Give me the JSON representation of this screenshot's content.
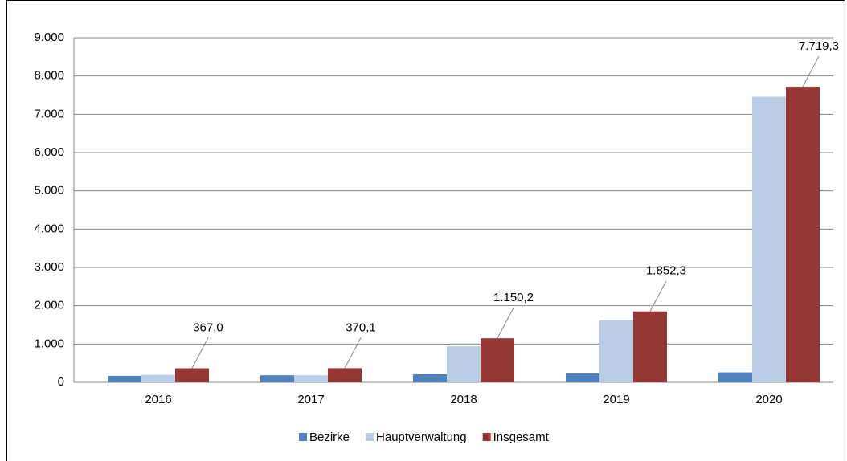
{
  "chart_data": {
    "type": "bar",
    "categories": [
      "2016",
      "2017",
      "2018",
      "2019",
      "2020"
    ],
    "series": [
      {
        "name": "Bezirke",
        "color": "#4f81bd",
        "values": [
          170,
          185,
          210,
          230,
          260
        ]
      },
      {
        "name": "Hauptverwaltung",
        "color": "#b9cde5",
        "values": [
          197,
          185,
          940,
          1622,
          7459
        ]
      },
      {
        "name": "Insgesamt",
        "color": "#953735",
        "values": [
          367.0,
          370.1,
          1150.2,
          1852.3,
          7719.3
        ],
        "value_labels": [
          "367,0",
          "370,1",
          "1.150,2",
          "1.852,3",
          "7.719,3"
        ]
      }
    ],
    "ylim": [
      0,
      9000
    ],
    "yticks": [
      0,
      {
        "value": 1000,
        "label": "1.000"
      },
      {
        "value": 2000,
        "label": "2.000"
      },
      {
        "value": 3000,
        "label": "3.000"
      },
      {
        "value": 4000,
        "label": "4.000"
      },
      {
        "value": 5000,
        "label": "5.000"
      },
      {
        "value": 6000,
        "label": "6.000"
      },
      {
        "value": 7000,
        "label": "7.000"
      },
      {
        "value": 8000,
        "label": "8.000"
      },
      {
        "value": 9000,
        "label": "9.000"
      }
    ],
    "grid": true,
    "legend": "bottom"
  }
}
